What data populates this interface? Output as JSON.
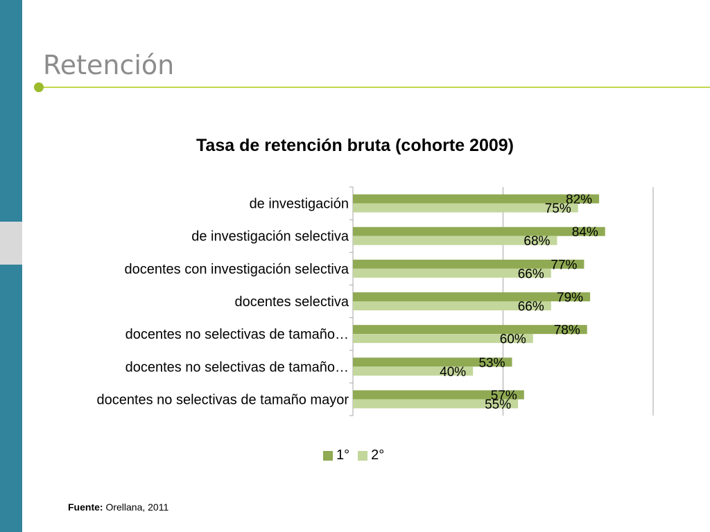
{
  "slide": {
    "title": "Retención"
  },
  "source": {
    "label": "Fuente:",
    "text": "Orellana, 2011"
  },
  "colors": {
    "series1": "#8faa53",
    "series2": "#c3d69b",
    "accent": "#31849b",
    "rule": "#c2d84b"
  },
  "chart_data": {
    "type": "bar",
    "orientation": "horizontal",
    "title": "Tasa de retención bruta (cohorte 2009)",
    "categories": [
      "de investigación",
      "de investigación selectiva",
      "docentes con investigación selectiva",
      "docentes selectiva",
      "docentes no selectivas de tamaño…",
      "docentes no selectivas de tamaño…",
      "docentes no selectivas de tamaño mayor"
    ],
    "series": [
      {
        "name": "1°",
        "values": [
          82,
          84,
          77,
          79,
          78,
          53,
          57
        ],
        "labels": [
          "82%",
          "84%",
          "77%",
          "79%",
          "78%",
          "53%",
          "57%"
        ]
      },
      {
        "name": "2°",
        "values": [
          75,
          68,
          66,
          66,
          60,
          40,
          55
        ],
        "labels": [
          "75%",
          "68%",
          "66%",
          "66%",
          "60%",
          "40%",
          "55%"
        ]
      }
    ],
    "xlim": [
      0,
      100
    ],
    "gridlines": [
      0,
      50,
      100
    ],
    "legend": "bottom",
    "data_labels": true
  }
}
